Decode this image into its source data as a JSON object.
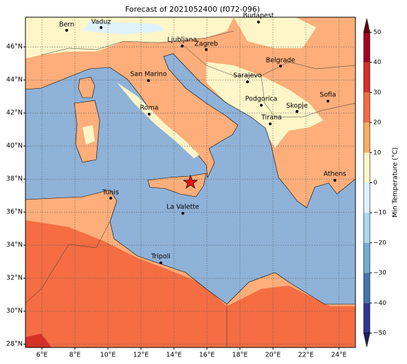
{
  "title": "Forecast of 2021052400 (f072-096)",
  "map": {
    "xlim": [
      5,
      25
    ],
    "ylim": [
      27.8,
      47.8
    ],
    "xticks": [
      {
        "value": 6,
        "label": "6°E"
      },
      {
        "value": 8,
        "label": "8°E"
      },
      {
        "value": 10,
        "label": "10°E"
      },
      {
        "value": 12,
        "label": "12°E"
      },
      {
        "value": 14,
        "label": "14°E"
      },
      {
        "value": 16,
        "label": "16°E"
      },
      {
        "value": 18,
        "label": "18°E"
      },
      {
        "value": 20,
        "label": "20°E"
      },
      {
        "value": 22,
        "label": "22°E"
      },
      {
        "value": 24,
        "label": "24°E"
      }
    ],
    "yticks": [
      {
        "value": 28,
        "label": "28°N"
      },
      {
        "value": 30,
        "label": "30°N"
      },
      {
        "value": 32,
        "label": "32°N"
      },
      {
        "value": 34,
        "label": "34°N"
      },
      {
        "value": 36,
        "label": "36°N"
      },
      {
        "value": 38,
        "label": "38°N"
      },
      {
        "value": 40,
        "label": "40°N"
      },
      {
        "value": 42,
        "label": "42°N"
      },
      {
        "value": 44,
        "label": "44°N"
      },
      {
        "value": 46,
        "label": "46°N"
      }
    ],
    "grid": true,
    "cities": [
      "Bern",
      "Vaduz",
      "Budapest",
      "Ljubljana",
      "Zagreb",
      "Belgrade",
      "San Marino",
      "Sarajevo",
      "Roma",
      "Podgorica",
      "Skopje",
      "Sofia",
      "Tirana",
      "Athens",
      "Tunis",
      "La Valette",
      "Tripoli"
    ]
  },
  "colorbar": {
    "label": "Min Temperature (°C)",
    "lim": [
      -50,
      50
    ],
    "ticks": [
      {
        "value": -50,
        "label": "−50"
      },
      {
        "value": -40,
        "label": "−40"
      },
      {
        "value": -30,
        "label": "−30"
      },
      {
        "value": -20,
        "label": "−20"
      },
      {
        "value": -10,
        "label": "−10"
      },
      0,
      10,
      20,
      30,
      40,
      50
    ],
    "colors": [
      "#313695",
      "#4575b4",
      "#74add1",
      "#abd9e9",
      "#e0f3f8",
      "#fef6c8",
      "#fdae61",
      "#f46d43",
      "#d73027",
      "#a50026"
    ],
    "extend_colors": [
      "#1f1f60",
      "#67000d"
    ]
  }
}
